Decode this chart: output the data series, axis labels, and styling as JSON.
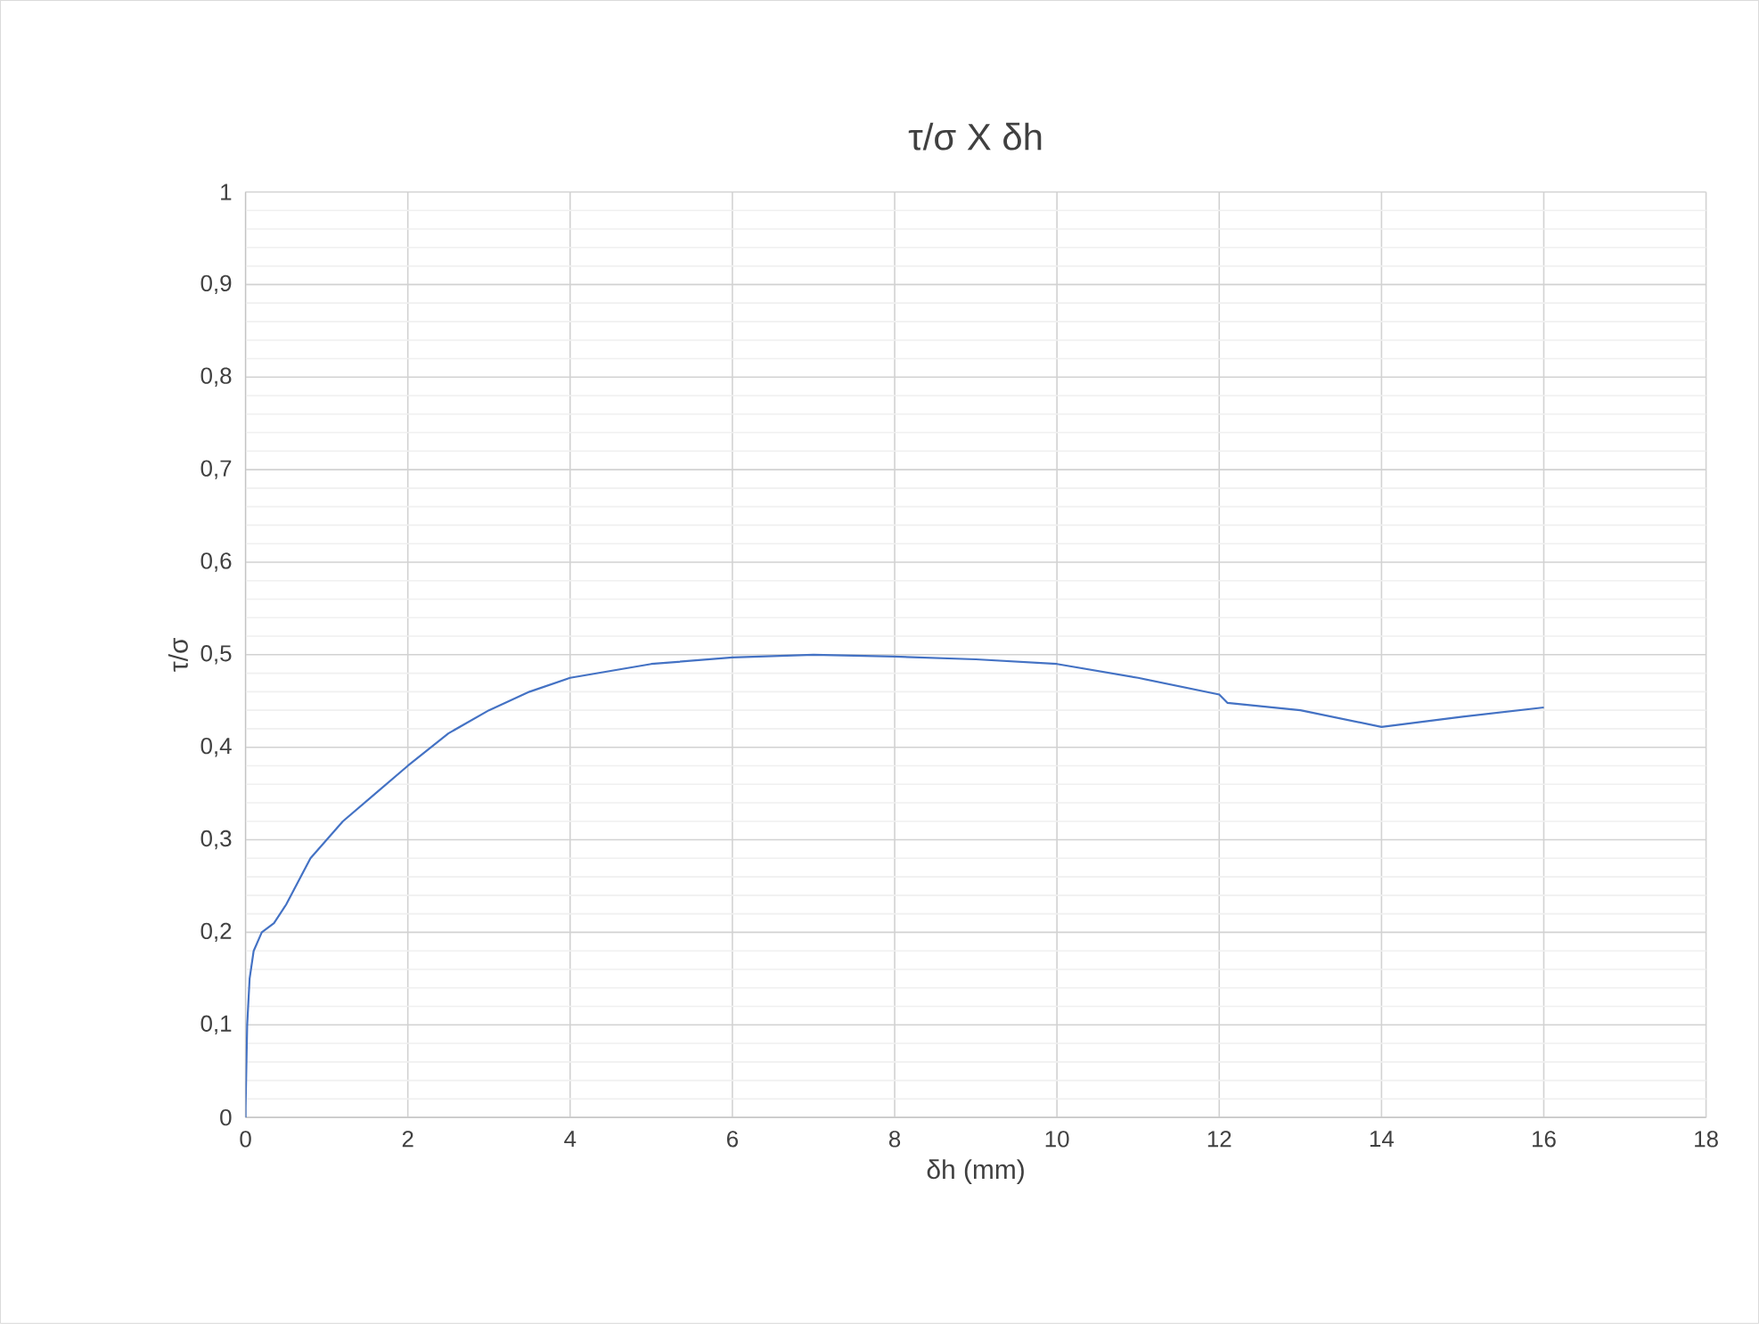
{
  "chart_data": {
    "type": "line",
    "title": "τ/σ X δh",
    "xlabel": "δh (mm)",
    "ylabel": "τ/σ",
    "series": [
      {
        "color": "#4472c4",
        "x": [
          0,
          0,
          0.02,
          0.05,
          0.1,
          0.2,
          0.35,
          0.5,
          0.8,
          1.2,
          1.6,
          2,
          2.5,
          3,
          3.5,
          4,
          5,
          6,
          7,
          8,
          9,
          10,
          11,
          12,
          12.1,
          13,
          14,
          15,
          16
        ],
        "values": [
          0,
          0.01,
          0.1,
          0.15,
          0.18,
          0.2,
          0.21,
          0.23,
          0.28,
          0.32,
          0.35,
          0.38,
          0.415,
          0.44,
          0.46,
          0.475,
          0.49,
          0.497,
          0.5,
          0.498,
          0.495,
          0.49,
          0.475,
          0.457,
          0.448,
          0.44,
          0.422,
          0.433,
          0.443
        ]
      }
    ],
    "xlim": [
      0,
      18
    ],
    "xticks": [
      0,
      2,
      4,
      6,
      8,
      10,
      12,
      14,
      16,
      18
    ],
    "ylim": [
      0,
      1
    ],
    "yticks": [
      0,
      {
        "value": 0.1,
        "label": "0,1"
      },
      {
        "value": 0.2,
        "label": "0,2"
      },
      {
        "value": 0.3,
        "label": "0,3"
      },
      {
        "value": 0.4,
        "label": "0,4"
      },
      {
        "value": 0.5,
        "label": "0,5"
      },
      {
        "value": 0.6,
        "label": "0,6"
      },
      {
        "value": 0.7,
        "label": "0,7"
      },
      {
        "value": 0.8,
        "label": "0,8"
      },
      {
        "value": 0.9,
        "label": "0,9"
      },
      1
    ],
    "grid": true,
    "marker": "none",
    "line_style": "solid"
  }
}
